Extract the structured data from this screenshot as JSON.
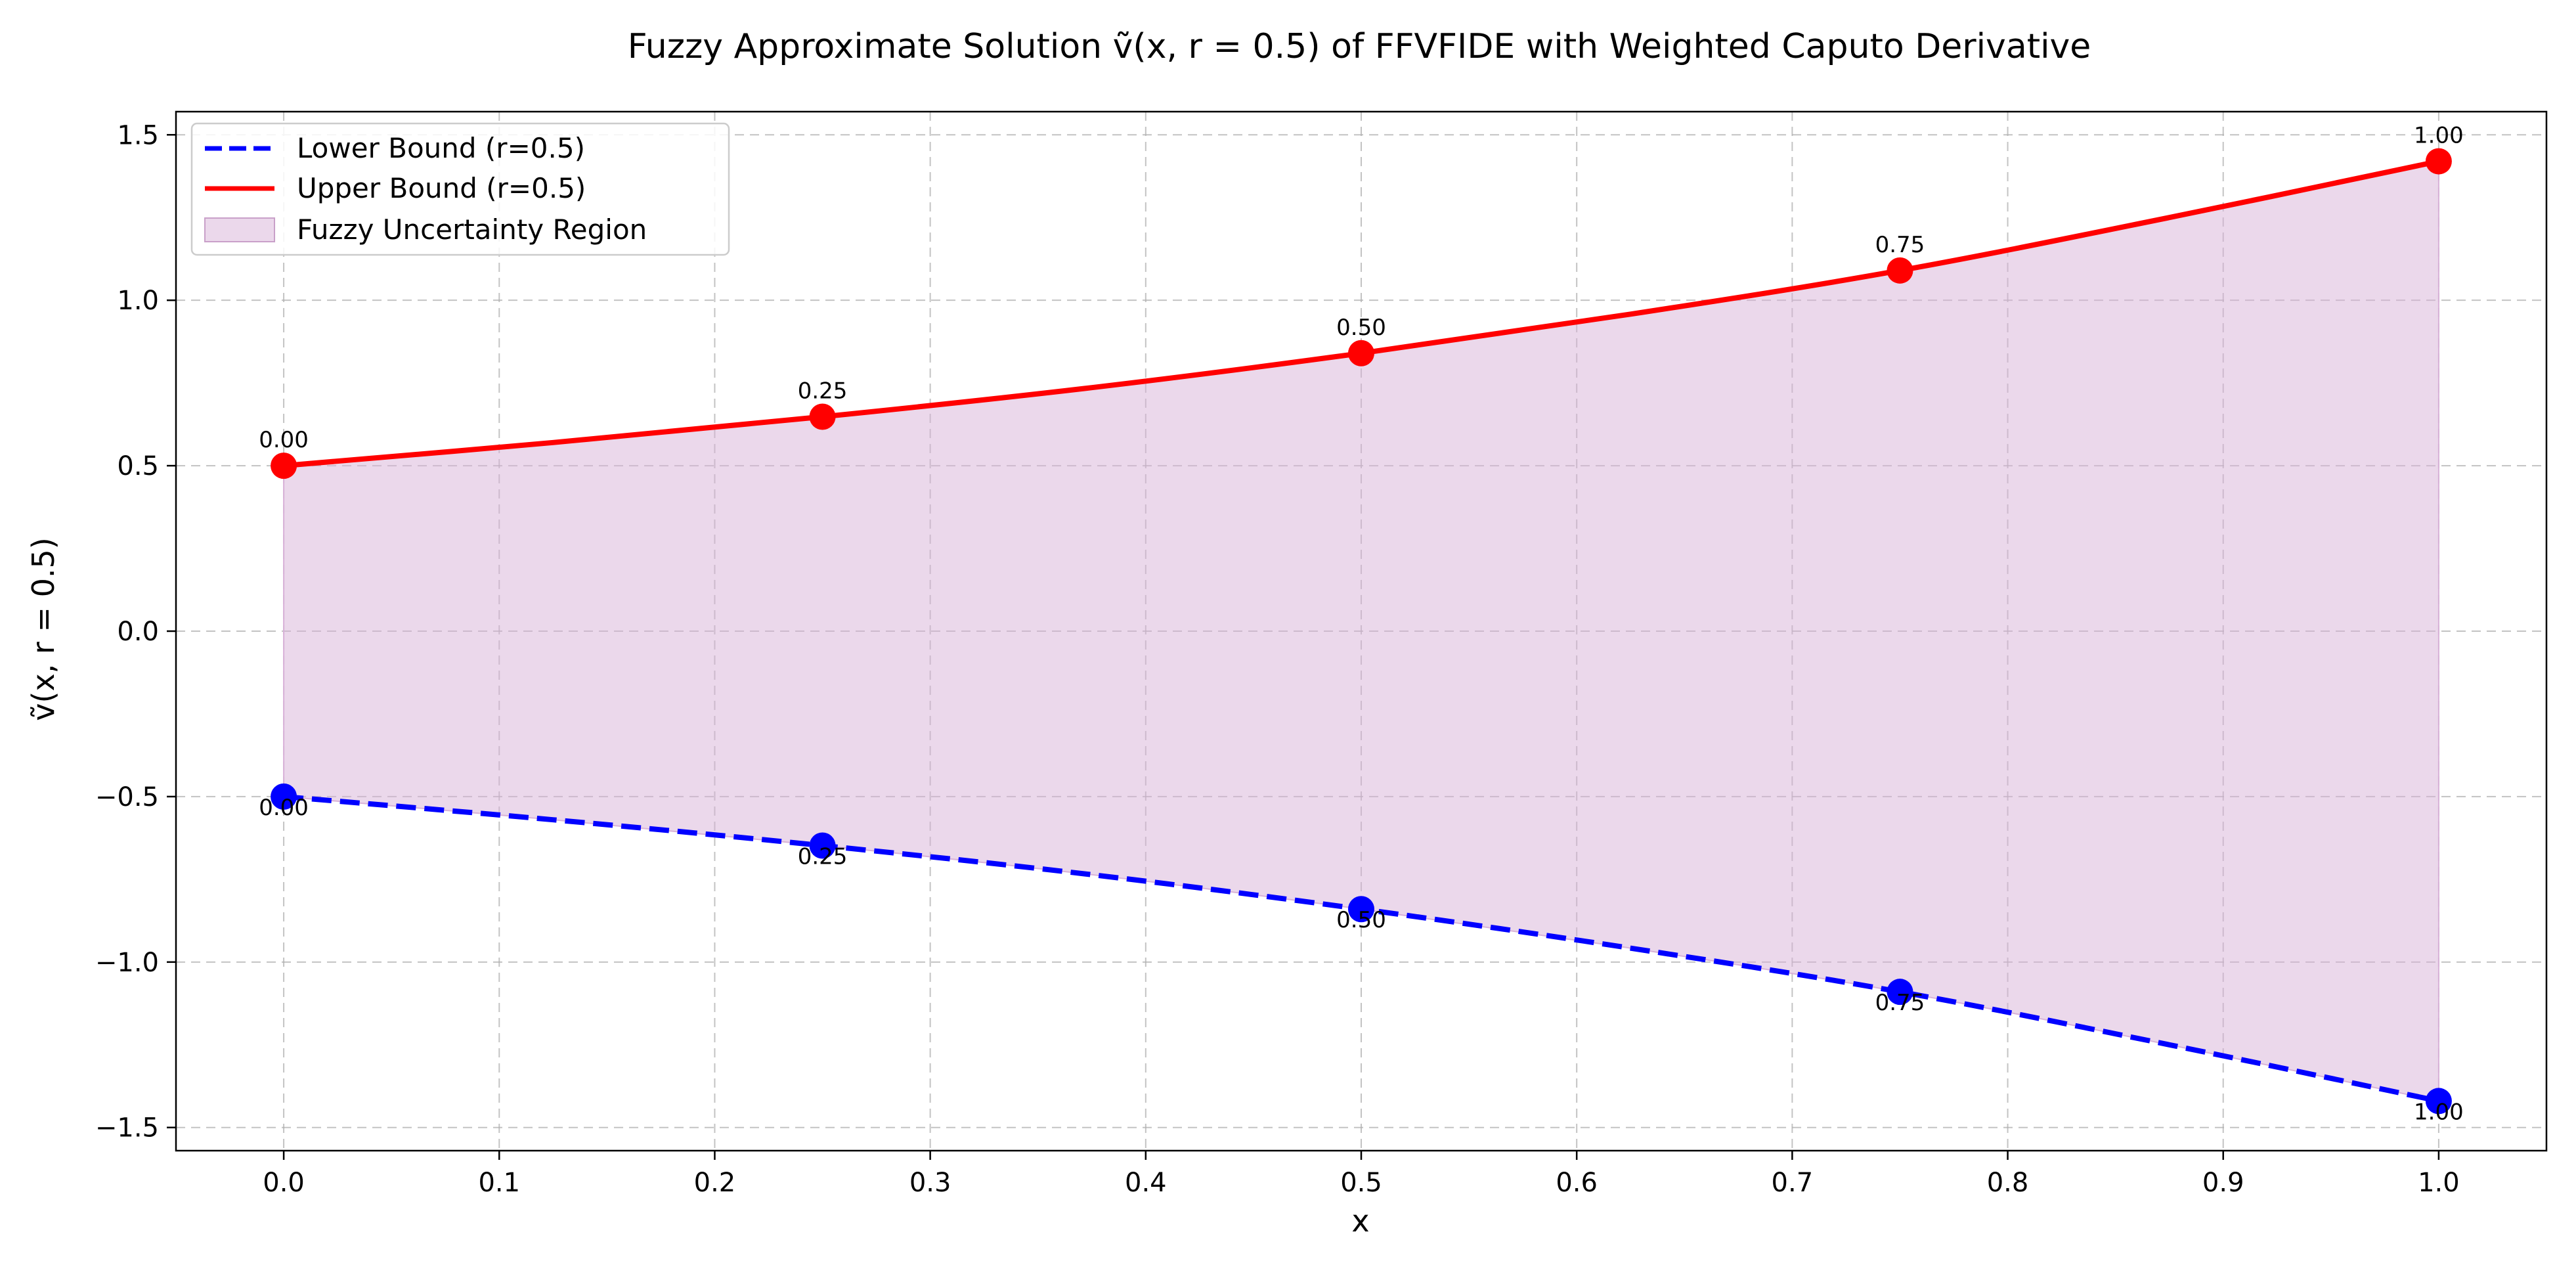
{
  "chart_data": {
    "type": "line",
    "title": "Fuzzy Approximate Solution ṽ(x, r = 0.5) of FFVFIDE with Weighted Caputo Derivative",
    "xlabel": "x",
    "ylabel": "ṽ(x, r = 0.5)",
    "xlim": [
      -0.05,
      1.05
    ],
    "ylim": [
      -1.57,
      1.57
    ],
    "x_ticks": [
      "0.0",
      "0.1",
      "0.2",
      "0.3",
      "0.4",
      "0.5",
      "0.6",
      "0.7",
      "0.8",
      "0.9",
      "1.0"
    ],
    "y_ticks": [
      "−1.5",
      "−1.0",
      "−0.5",
      "0.0",
      "0.5",
      "1.0",
      "1.5"
    ],
    "grid": true,
    "legend_position": "top-left",
    "curve_x": [
      0.0,
      0.125,
      0.25,
      0.375,
      0.5,
      0.625,
      0.75,
      0.875,
      1.0
    ],
    "series": [
      {
        "name": "Lower Bound (r=0.5)",
        "style": "dashed",
        "color": "#0000ff",
        "curve": [
          -0.5,
          -0.57,
          -0.648,
          -0.736,
          -0.84,
          -0.958,
          -1.09,
          -1.25,
          -1.42
        ]
      },
      {
        "name": "Upper Bound (r=0.5)",
        "style": "solid",
        "color": "#ff0000",
        "curve": [
          0.5,
          0.57,
          0.648,
          0.736,
          0.84,
          0.958,
          1.09,
          1.25,
          1.42
        ]
      }
    ],
    "fill": {
      "name": "Fuzzy Uncertainty Region",
      "color": "#d8b2d8"
    },
    "markers": {
      "x": [
        0.0,
        0.25,
        0.5,
        0.75,
        1.0
      ],
      "lower": [
        -0.5,
        -0.648,
        -0.84,
        -1.09,
        -1.42
      ],
      "upper": [
        0.5,
        0.648,
        0.84,
        1.09,
        1.42
      ],
      "labels": [
        "0.00",
        "0.25",
        "0.50",
        "0.75",
        "1.00"
      ]
    }
  }
}
